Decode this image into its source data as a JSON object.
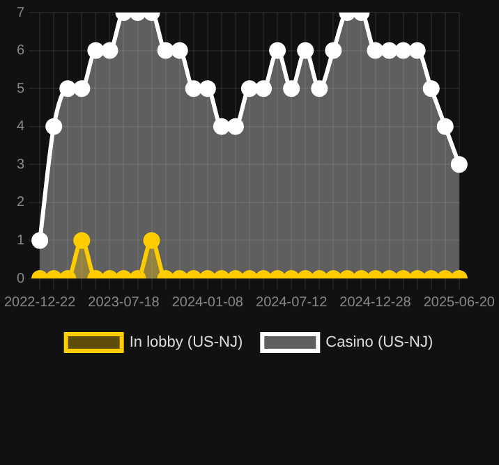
{
  "chart_data": {
    "type": "area",
    "categories": [
      "2022-12-22",
      null,
      null,
      null,
      null,
      null,
      "2023-07-18",
      null,
      null,
      null,
      null,
      null,
      "2024-01-08",
      null,
      null,
      null,
      null,
      null,
      "2024-07-12",
      null,
      null,
      null,
      null,
      null,
      "2024-12-28",
      null,
      null,
      null,
      null,
      null,
      "2025-06-20"
    ],
    "series": [
      {
        "name": "In lobby (US-NJ)",
        "color": "#ffcc00",
        "values": [
          0,
          0,
          0,
          1,
          0,
          0,
          0,
          0,
          1,
          0,
          0,
          0,
          0,
          0,
          0,
          0,
          0,
          0,
          0,
          0,
          0,
          0,
          0,
          0,
          0,
          0,
          0,
          0,
          0,
          0,
          0
        ]
      },
      {
        "name": "Casino (US-NJ)",
        "color": "#ffffff",
        "values": [
          1,
          4,
          5,
          5,
          6,
          6,
          7,
          7,
          7,
          6,
          6,
          5,
          5,
          4,
          4,
          5,
          5,
          6,
          5,
          6,
          5,
          6,
          7,
          7,
          6,
          6,
          6,
          6,
          5,
          4,
          3
        ]
      }
    ],
    "ylim": [
      0,
      7
    ],
    "yticks": [
      0,
      1,
      2,
      3,
      4,
      5,
      6,
      7
    ],
    "grid": true,
    "legend": "bottom",
    "marker": "circle"
  }
}
